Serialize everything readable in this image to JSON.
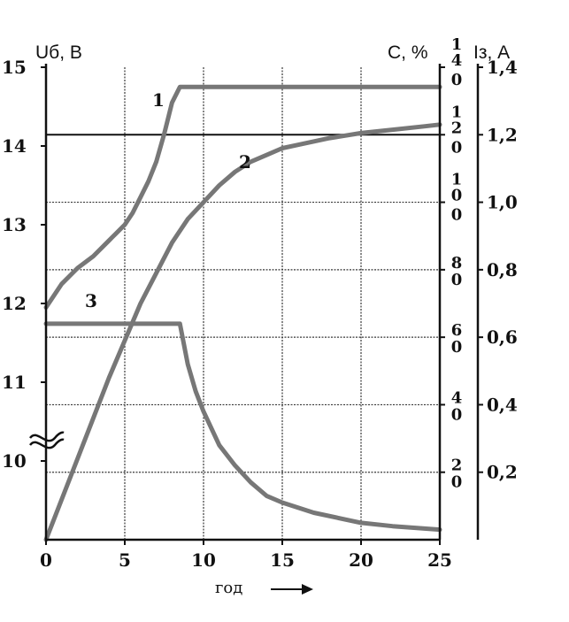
{
  "chart_data": {
    "type": "line",
    "title": "",
    "xlabel": "год",
    "xlim": [
      0,
      25
    ],
    "x_ticks": [
      "0",
      "5",
      "10",
      "15",
      "20",
      "25"
    ],
    "left_axis": {
      "label": "Uб, В",
      "ylim": [
        9,
        15
      ],
      "ticks": [
        "15",
        "14",
        "13",
        "12",
        "11",
        "10"
      ],
      "axis_break": true
    },
    "middle_axis": {
      "label": "С, %",
      "ylim": [
        0,
        140
      ],
      "ticks": [
        {
          "top": "1",
          "bottom": "4"
        },
        {
          "top": "",
          "bottom": "0"
        },
        {
          "top": "1",
          "bottom": "2"
        },
        {
          "top": "",
          "bottom": "0"
        },
        {
          "top": "1",
          "bottom": "0"
        },
        {
          "top": "",
          "bottom": "0"
        },
        {
          "top": "8",
          "bottom": "0"
        },
        {
          "top": "6",
          "bottom": "0"
        },
        {
          "top": "4",
          "bottom": "0"
        },
        {
          "top": "2",
          "bottom": "0"
        }
      ]
    },
    "right_axis": {
      "label": "Iз, А",
      "ylim": [
        0,
        1.4
      ],
      "ticks": [
        "1,4",
        "1,2",
        "1,0",
        "0,8",
        "0,6",
        "0,4",
        "0,2"
      ]
    },
    "grid": true,
    "series": [
      {
        "name": "1",
        "axis": "left",
        "x": [
          0,
          1,
          2,
          3,
          4,
          5,
          5.5,
          6,
          6.5,
          7,
          7.5,
          8,
          8.5,
          9,
          10,
          15,
          20,
          25
        ],
        "y": [
          11.95,
          12.25,
          12.45,
          12.6,
          12.8,
          13.0,
          13.15,
          13.35,
          13.55,
          13.8,
          14.15,
          14.55,
          14.75,
          14.75,
          14.75,
          14.75,
          14.75,
          14.75
        ]
      },
      {
        "name": "2",
        "axis": "middle",
        "x": [
          0,
          2,
          4,
          6,
          8,
          9,
          10,
          11,
          12,
          13,
          14,
          15,
          16,
          18,
          20,
          22,
          24,
          25
        ],
        "y": [
          0,
          24,
          48,
          70,
          88,
          95,
          100,
          105,
          109,
          112,
          114,
          116,
          117,
          119,
          120.5,
          121.5,
          122.5,
          123
        ]
      },
      {
        "name": "3",
        "axis": "right",
        "x": [
          0,
          3,
          5,
          7,
          8.5,
          9,
          9.5,
          10,
          11,
          12,
          13,
          14,
          15,
          17,
          20,
          22,
          25
        ],
        "y": [
          0.64,
          0.64,
          0.64,
          0.64,
          0.64,
          0.52,
          0.44,
          0.38,
          0.28,
          0.22,
          0.17,
          0.13,
          0.11,
          0.08,
          0.05,
          0.04,
          0.03
        ]
      }
    ]
  }
}
